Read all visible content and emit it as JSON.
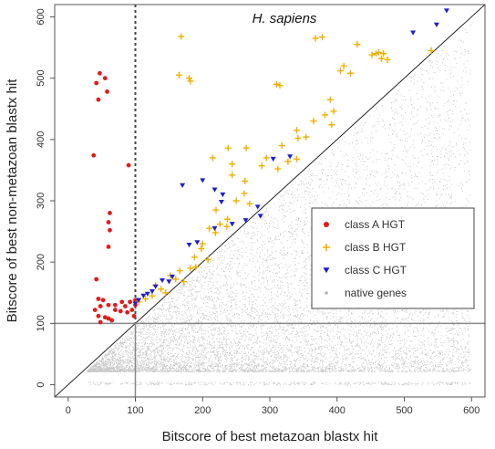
{
  "chart_data": {
    "type": "scatter",
    "title": "H. sapiens",
    "xlabel": "Bitscore of best metazoan blastx hit",
    "ylabel": "Bitscore of best non-metazoan blastx hit",
    "xlim": [
      -20,
      620
    ],
    "ylim": [
      -20,
      620
    ],
    "xticks": [
      0,
      100,
      200,
      300,
      400,
      500,
      600
    ],
    "yticks": [
      0,
      100,
      200,
      300,
      400,
      500,
      600
    ],
    "reference_lines": {
      "diagonal": "y = x",
      "vertical_dashed_x": 100,
      "horizontal_y": 100,
      "vertical_x": 100
    },
    "legend": {
      "position": "center-right"
    },
    "series": [
      {
        "name": "class A HGT",
        "marker": "dot",
        "color": "#e01b1b",
        "points": [
          [
            38,
            374
          ],
          [
            42,
            492
          ],
          [
            45,
            465
          ],
          [
            47,
            508
          ],
          [
            58,
            478
          ],
          [
            55,
            500
          ],
          [
            90,
            358
          ],
          [
            62,
            280
          ],
          [
            60,
            265
          ],
          [
            62,
            252
          ],
          [
            60,
            225
          ],
          [
            42,
            172
          ],
          [
            45,
            140
          ],
          [
            52,
            138
          ],
          [
            60,
            130
          ],
          [
            48,
            128
          ],
          [
            40,
            122
          ],
          [
            70,
            122
          ],
          [
            78,
            120
          ],
          [
            85,
            128
          ],
          [
            92,
            135
          ],
          [
            95,
            122
          ],
          [
            100,
            130
          ],
          [
            45,
            112
          ],
          [
            55,
            110
          ],
          [
            60,
            108
          ],
          [
            65,
            105
          ],
          [
            48,
            102
          ],
          [
            70,
            130
          ],
          [
            80,
            135
          ],
          [
            88,
            118
          ],
          [
            98,
            112
          ],
          [
            100,
            138
          ]
        ]
      },
      {
        "name": "class B HGT",
        "marker": "plus",
        "color": "#f0b000",
        "points": [
          [
            168,
            568
          ],
          [
            180,
            500
          ],
          [
            182,
            495
          ],
          [
            165,
            505
          ],
          [
            310,
            490
          ],
          [
            315,
            488
          ],
          [
            368,
            565
          ],
          [
            378,
            567
          ],
          [
            430,
            555
          ],
          [
            452,
            538
          ],
          [
            458,
            540
          ],
          [
            466,
            532
          ],
          [
            469,
            540
          ],
          [
            475,
            530
          ],
          [
            410,
            520
          ],
          [
            405,
            512
          ],
          [
            420,
            508
          ],
          [
            462,
            542
          ],
          [
            540,
            545
          ],
          [
            382,
            440
          ],
          [
            395,
            446
          ],
          [
            392,
            424
          ],
          [
            354,
            404
          ],
          [
            342,
            402
          ],
          [
            265,
            386
          ],
          [
            238,
            386
          ],
          [
            215,
            370
          ],
          [
            340,
            368
          ],
          [
            244,
            360
          ],
          [
            288,
            357
          ],
          [
            312,
            352
          ],
          [
            327,
            364
          ],
          [
            244,
            342
          ],
          [
            263,
            332
          ],
          [
            262,
            312
          ],
          [
            270,
            295
          ],
          [
            220,
            285
          ],
          [
            237,
            270
          ],
          [
            236,
            258
          ],
          [
            210,
            255
          ],
          [
            219,
            248
          ],
          [
            200,
            230
          ],
          [
            188,
            208
          ],
          [
            182,
            190
          ],
          [
            166,
            186
          ],
          [
            152,
            178
          ],
          [
            160,
            172
          ],
          [
            172,
            168
          ],
          [
            190,
            192
          ],
          [
            208,
            204
          ],
          [
            130,
            162
          ],
          [
            138,
            156
          ],
          [
            145,
            150
          ],
          [
            125,
            145
          ],
          [
            115,
            140
          ],
          [
            105,
            135
          ],
          [
            198,
            222
          ],
          [
            226,
            262
          ],
          [
            250,
            300
          ],
          [
            295,
            370
          ],
          [
            365,
            430
          ],
          [
            390,
            465
          ],
          [
            340,
            415
          ],
          [
            318,
            390
          ]
        ]
      },
      {
        "name": "class C HGT",
        "marker": "triangle",
        "color": "#1f1fd0",
        "points": [
          [
            563,
            610
          ],
          [
            548,
            587
          ],
          [
            513,
            574
          ],
          [
            170,
            325
          ],
          [
            200,
            333
          ],
          [
            218,
            318
          ],
          [
            230,
            310
          ],
          [
            228,
            298
          ],
          [
            282,
            290
          ],
          [
            286,
            275
          ],
          [
            264,
            268
          ],
          [
            244,
            262
          ],
          [
            218,
            255
          ],
          [
            192,
            232
          ],
          [
            180,
            228
          ],
          [
            155,
            176
          ],
          [
            140,
            170
          ],
          [
            130,
            160
          ],
          [
            125,
            152
          ],
          [
            118,
            148
          ],
          [
            105,
            138
          ],
          [
            100,
            132
          ],
          [
            112,
            145
          ],
          [
            150,
            168
          ],
          [
            305,
            368
          ],
          [
            330,
            372
          ]
        ]
      },
      {
        "name": "native genes",
        "marker": "dot",
        "color": "#c8c8c8"
      }
    ]
  }
}
